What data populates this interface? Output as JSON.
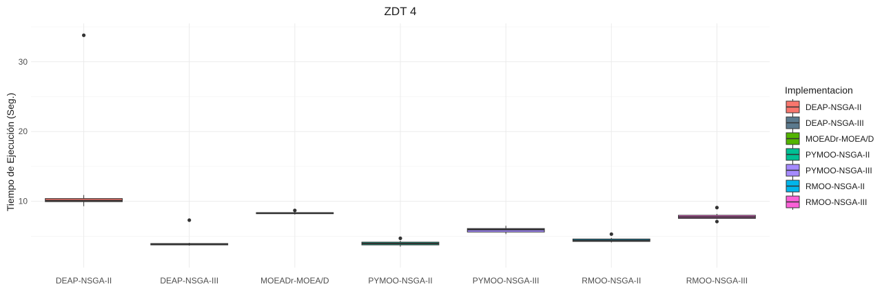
{
  "chart_data": {
    "type": "boxplot",
    "title": "ZDT 4",
    "xlabel": "",
    "ylabel": "Tiempo de Ejecución (Seg.)",
    "ylim": [
      0.5,
      35.5
    ],
    "yticks": [
      10,
      20,
      30
    ],
    "grid": true,
    "legend": {
      "title": "Implementacion",
      "position": "right"
    },
    "categories": [
      "DEAP-NSGA-II",
      "DEAP-NSGA-III",
      "MOEADr-MOEA/D",
      "PYMOO-NSGA-II",
      "PYMOO-NSGA-III",
      "RMOO-NSGA-II",
      "RMOO-NSGA-III"
    ],
    "series": [
      {
        "name": "DEAP-NSGA-II",
        "color": "#F8766D",
        "whisker_low": 9.3,
        "q1": 9.95,
        "median": 10.1,
        "q3": 10.4,
        "whisker_high": 10.9,
        "outliers": [
          33.8
        ]
      },
      {
        "name": "DEAP-NSGA-III",
        "color": "#5B7A8E",
        "whisker_low": 3.65,
        "q1": 3.75,
        "median": 3.85,
        "q3": 3.95,
        "whisker_high": 4.05,
        "outliers": [
          7.3
        ]
      },
      {
        "name": "MOEADr-MOEA/D",
        "color": "#53B400",
        "whisker_low": 8.1,
        "q1": 8.22,
        "median": 8.3,
        "q3": 8.38,
        "whisker_high": 8.5,
        "outliers": [
          8.7
        ]
      },
      {
        "name": "PYMOO-NSGA-II",
        "color": "#00C094",
        "whisker_low": 3.5,
        "q1": 3.75,
        "median": 3.95,
        "q3": 4.15,
        "whisker_high": 4.35,
        "outliers": [
          4.7
        ]
      },
      {
        "name": "PYMOO-NSGA-III",
        "color": "#A58AFF",
        "whisker_low": 5.3,
        "q1": 5.6,
        "median": 5.95,
        "q3": 6.1,
        "whisker_high": 6.5,
        "outliers": []
      },
      {
        "name": "RMOO-NSGA-II",
        "color": "#00B6EB",
        "whisker_low": 4.1,
        "q1": 4.25,
        "median": 4.4,
        "q3": 4.6,
        "whisker_high": 4.75,
        "outliers": [
          5.3
        ]
      },
      {
        "name": "RMOO-NSGA-III",
        "color": "#FB61D7",
        "whisker_low": 7.45,
        "q1": 7.55,
        "median": 7.75,
        "q3": 8.0,
        "whisker_high": 8.2,
        "outliers": [
          9.1,
          7.1
        ]
      }
    ]
  }
}
